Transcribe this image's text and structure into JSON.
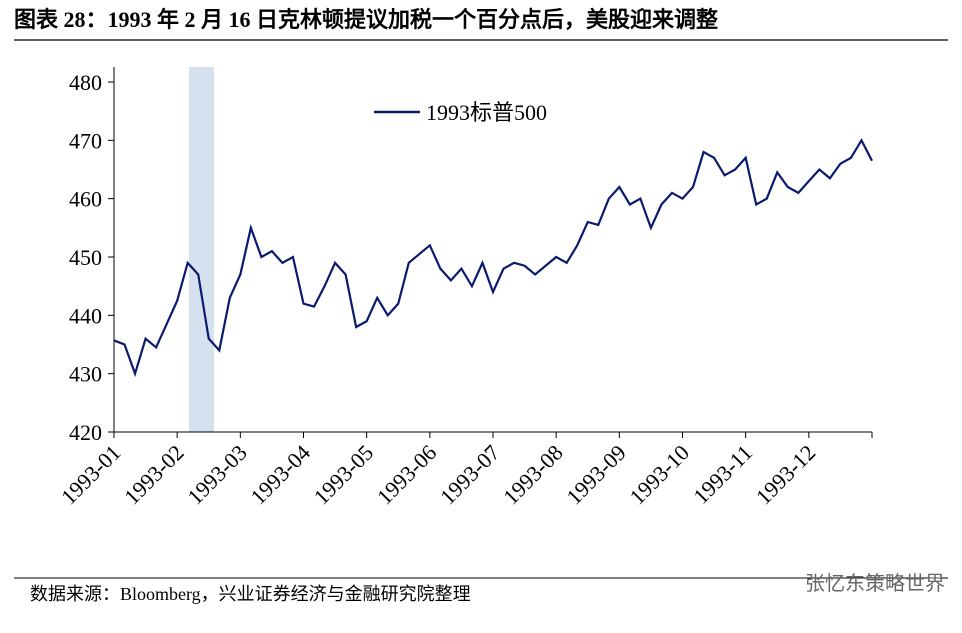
{
  "chart_data": {
    "type": "line",
    "title": "图表 28：1993 年 2 月 16 日克林顿提议加税一个百分点后，美股迎来调整",
    "source": "数据来源：Bloomberg，兴业证券经济与金融研究院整理",
    "watermark": "张忆东策略世界",
    "categories": [
      "1993-01",
      null,
      null,
      null,
      null,
      null,
      "1993-02",
      null,
      null,
      null,
      null,
      null,
      "1993-03",
      null,
      null,
      null,
      null,
      null,
      "1993-04",
      null,
      null,
      null,
      null,
      null,
      "1993-05",
      null,
      null,
      null,
      null,
      null,
      "1993-06",
      null,
      null,
      null,
      null,
      null,
      "1993-07",
      null,
      null,
      null,
      null,
      null,
      "1993-08",
      null,
      null,
      null,
      null,
      null,
      "1993-09",
      null,
      null,
      null,
      null,
      null,
      "1993-10",
      null,
      null,
      null,
      null,
      null,
      "1993-11",
      null,
      null,
      null,
      null,
      null,
      "1993-12",
      null,
      null,
      null,
      null,
      null,
      null
    ],
    "series": [
      {
        "name": "1993标普500",
        "color": "#0a1a6e",
        "values": [
          435.7,
          435,
          430,
          436,
          434.5,
          438.5,
          442.5,
          449,
          447,
          436,
          434,
          443,
          447,
          455,
          450,
          451,
          449,
          450,
          442,
          441.5,
          445,
          449,
          447,
          438,
          439,
          443,
          440,
          442,
          449,
          450.5,
          452,
          448,
          446,
          448,
          445,
          449,
          444,
          448,
          449,
          448.5,
          447,
          448.5,
          450,
          449,
          452,
          456,
          455.5,
          460,
          462,
          459,
          460,
          455,
          459,
          461,
          460,
          462,
          468,
          467,
          464,
          465,
          467,
          459,
          460,
          464.5,
          462,
          461,
          463,
          465,
          463.5,
          466,
          467,
          470,
          466.5
        ]
      }
    ],
    "ylim": [
      420,
      480
    ],
    "yticks": [
      420,
      430,
      440,
      450,
      460,
      470,
      480
    ],
    "legend": "top"
  }
}
